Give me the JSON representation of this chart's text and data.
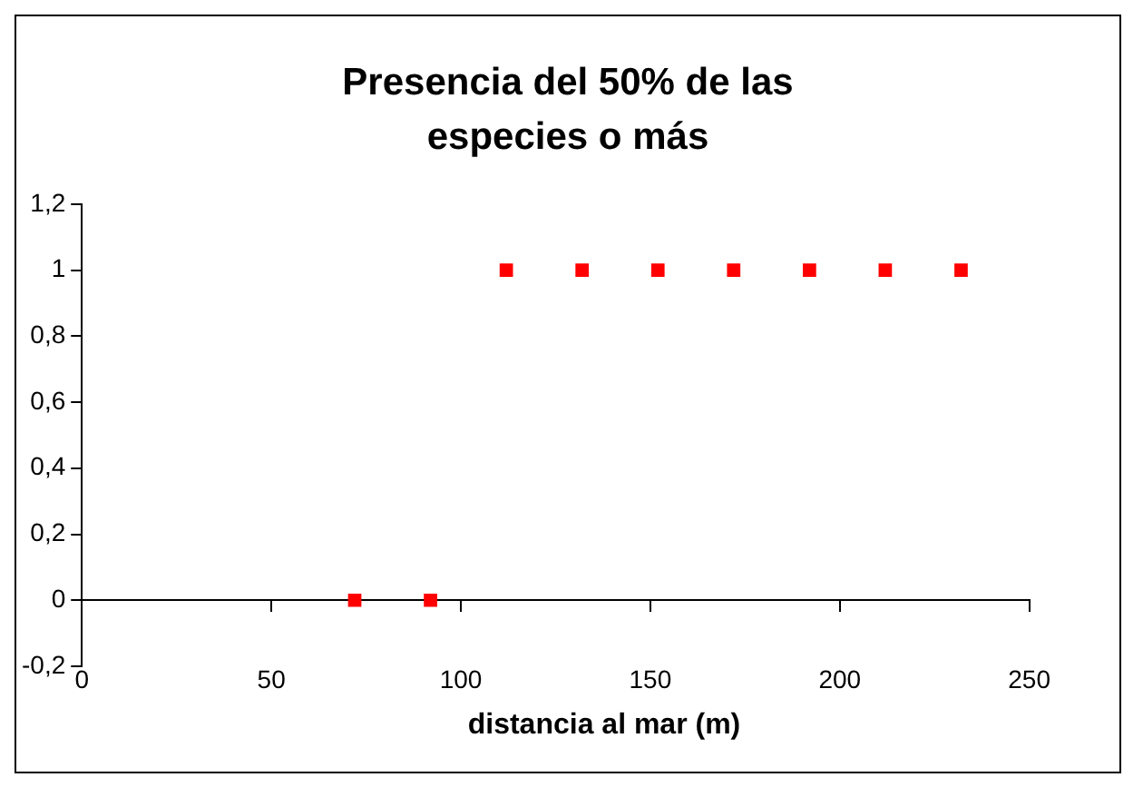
{
  "chart_data": {
    "type": "scatter",
    "title": "Presencia del 50% de las especies o más",
    "xlabel": "distancia al mar (m)",
    "x": [
      72,
      92,
      112,
      132,
      152,
      172,
      192,
      212,
      232
    ],
    "series": [
      {
        "color": "#ff0000",
        "values": [
          0,
          0,
          1,
          1,
          1,
          1,
          1,
          1,
          1
        ]
      }
    ],
    "xlim": [
      0,
      250
    ],
    "xticks": [
      0,
      50,
      100,
      150,
      200,
      250
    ],
    "ylim": [
      -0.2,
      1.2
    ],
    "yticks": [
      {
        "value": -0.2,
        "label": "-0,2"
      },
      0,
      {
        "value": 0.2,
        "label": "0,2"
      },
      {
        "value": 0.4,
        "label": "0,4"
      },
      {
        "value": 0.6,
        "label": "0,6"
      },
      {
        "value": 0.8,
        "label": "0,8"
      },
      1,
      {
        "value": 1.2,
        "label": "1,2"
      }
    ],
    "marker": "square",
    "grid": false,
    "legend": false
  }
}
